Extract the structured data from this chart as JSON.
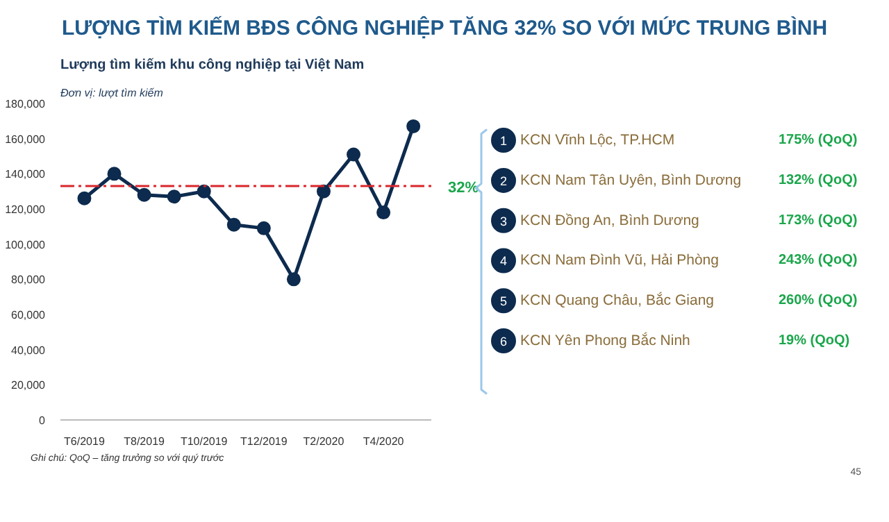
{
  "chart_data": {
    "type": "line",
    "title": "LƯỢNG TÌM KIẾM BĐS CÔNG NGHIỆP TĂNG 32% SO VỚI MỨC TRUNG BÌNH",
    "subtitle": "Lượng tìm kiếm khu công nghiệp tại Việt Nam",
    "categories": [
      "T6/2019",
      null,
      "T8/2019",
      null,
      "T10/2019",
      null,
      "T12/2019",
      null,
      "T2/2020",
      null,
      "T4/2020",
      null
    ],
    "series": [
      {
        "color": "#0d2b4e",
        "values": [
          126000,
          140000,
          128000,
          127000,
          130000,
          111000,
          109000,
          80000,
          130000,
          151000,
          118000,
          167000
        ]
      }
    ],
    "marker": "circle",
    "line_style": "solid",
    "grid": false,
    "ylim": [
      0,
      180000
    ],
    "yticks": [
      0,
      {
        "value": 20000,
        "label": "20,000"
      },
      {
        "value": 40000,
        "label": "40,000"
      },
      {
        "value": 60000,
        "label": "60,000"
      },
      {
        "value": 80000,
        "label": "80,000"
      },
      {
        "value": 100000,
        "label": "100,000"
      },
      {
        "value": 120000,
        "label": "120,000"
      },
      {
        "value": 140000,
        "label": "140,000"
      },
      {
        "value": 160000,
        "label": "160,000"
      },
      {
        "value": 180000,
        "label": "180,000"
      }
    ],
    "ref_lines": [
      {
        "axis": "y",
        "value": 133000,
        "color": "#d9262c",
        "line_style": "dashdot"
      }
    ],
    "annotations": [
      "Đơn vị: lượt tìm kiếm",
      "32%",
      "1",
      "KCN Vĩnh Lộc, TP.HCM",
      "175% (QoQ)",
      "2",
      "KCN Nam Tân Uyên, Bình Dương",
      "132% (QoQ)",
      "3",
      "KCN Đồng An, Bình Dương",
      "173% (QoQ)",
      "4",
      "KCN Nam Đình Vũ, Hải Phòng",
      "243% (QoQ)",
      "5",
      "KCN Quang Châu, Bắc Giang",
      "260% (QoQ)",
      "6",
      "KCN Yên Phong Bắc Ninh",
      "19% (QoQ)",
      "Ghi chú: QoQ – tăng trưởng so với quý trước",
      "45"
    ]
  }
}
